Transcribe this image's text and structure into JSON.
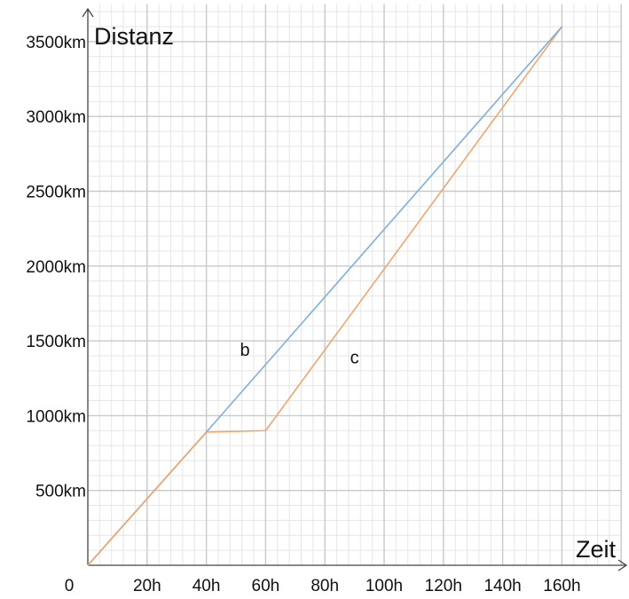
{
  "chart_data": {
    "type": "line",
    "xlabel": "Zeit",
    "ylabel": "Distanz",
    "origin_label": "0",
    "xlim": [
      0,
      180
    ],
    "ylim": [
      0,
      3750
    ],
    "x_ticks": [
      {
        "value": 20,
        "label": "20h"
      },
      {
        "value": 40,
        "label": "40h"
      },
      {
        "value": 60,
        "label": "60h"
      },
      {
        "value": 80,
        "label": "80h"
      },
      {
        "value": 100,
        "label": "100h"
      },
      {
        "value": 120,
        "label": "120h"
      },
      {
        "value": 140,
        "label": "140h"
      },
      {
        "value": 160,
        "label": "160h"
      }
    ],
    "y_ticks": [
      {
        "value": 500,
        "label": "500km"
      },
      {
        "value": 1000,
        "label": "1000km"
      },
      {
        "value": 1500,
        "label": "1500km"
      },
      {
        "value": 2000,
        "label": "2000km"
      },
      {
        "value": 2500,
        "label": "2500km"
      },
      {
        "value": 3000,
        "label": "3000km"
      },
      {
        "value": 3500,
        "label": "3500km"
      }
    ],
    "major_grid_x_step": 20,
    "major_grid_y_step": 500,
    "minor_grid_x_step": 4,
    "minor_grid_y_step": 100,
    "grid": true,
    "series": [
      {
        "name": "b",
        "color": "#7fb0dc",
        "points": [
          [
            0,
            0
          ],
          [
            40,
            890
          ],
          [
            160,
            3600
          ]
        ],
        "label_at": [
          53,
          1400
        ]
      },
      {
        "name": "c",
        "color": "#f0a66e",
        "points": [
          [
            0,
            0
          ],
          [
            40,
            890
          ],
          [
            60,
            900
          ],
          [
            160,
            3600
          ]
        ],
        "label_at": [
          90,
          1350
        ]
      }
    ]
  }
}
